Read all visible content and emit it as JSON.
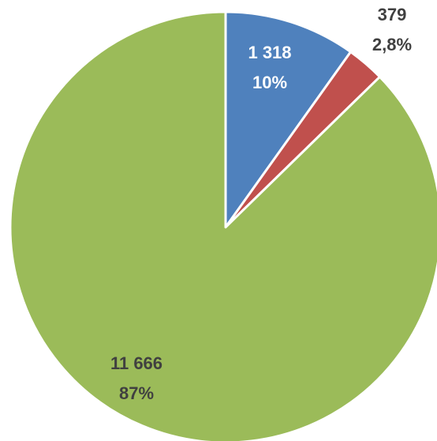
{
  "chart_data": {
    "type": "pie",
    "title": "",
    "start_angle_deg": 0,
    "direction": "clockwise",
    "slices": [
      {
        "value": 1318,
        "value_label": "1 318",
        "percent_label": "10%",
        "color": "#4f81bd",
        "label_color": "#ffffff"
      },
      {
        "value": 379,
        "value_label": "379",
        "percent_label": "2,8%",
        "color": "#c0504d",
        "label_color": "#404040"
      },
      {
        "value": 11666,
        "value_label": "11 666",
        "percent_label": "87%",
        "color": "#9bbb59",
        "label_color": "#404040"
      }
    ],
    "legend": "none"
  }
}
